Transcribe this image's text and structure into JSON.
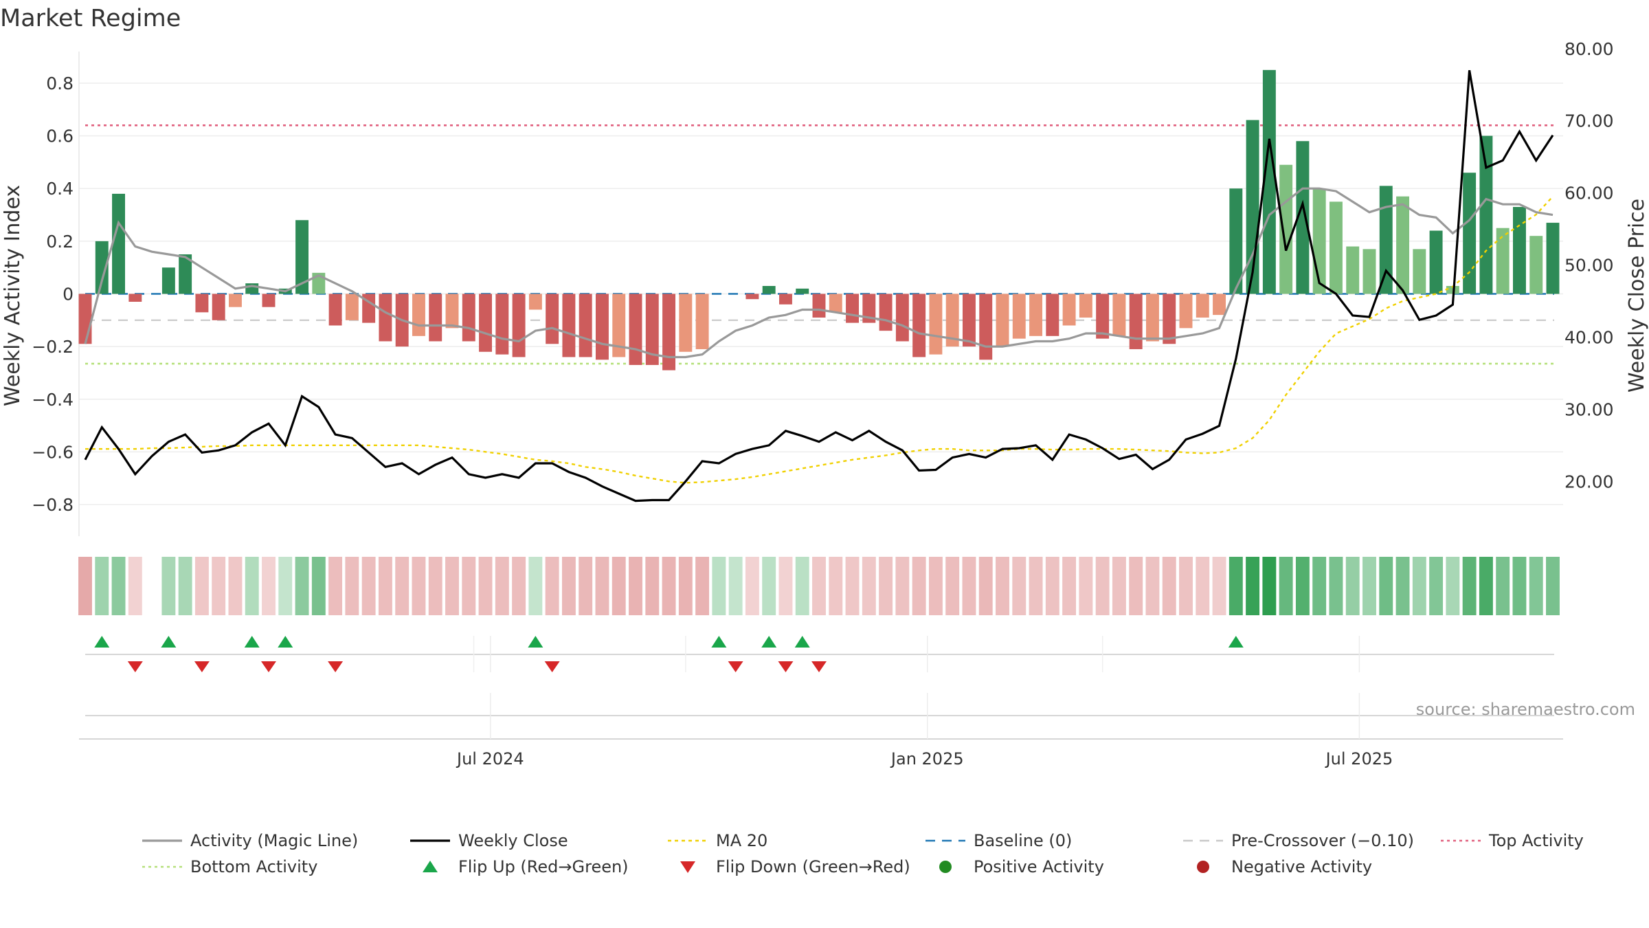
{
  "chart_data": {
    "type": "bar",
    "title": "Market Regime",
    "ylabel": "Weekly Activity Index",
    "y2label": "Weekly Close Price",
    "source": "source: sharemaestro.com",
    "ylim": [
      -0.92,
      0.92
    ],
    "y2lim": [
      12.4,
      79.6
    ],
    "yticks": [
      {
        "v": 0.8,
        "t": "0.8"
      },
      {
        "v": 0.6,
        "t": "0.6"
      },
      {
        "v": 0.4,
        "t": "0.4"
      },
      {
        "v": 0.2,
        "t": "0.2"
      },
      {
        "v": 0,
        "t": "0"
      },
      {
        "v": -0.2,
        "t": "−0.2"
      },
      {
        "v": -0.4,
        "t": "−0.4"
      },
      {
        "v": -0.6,
        "t": "−0.6"
      },
      {
        "v": -0.8,
        "t": "−0.8"
      }
    ],
    "y2ticks": [
      {
        "v": 80,
        "t": "80.00"
      },
      {
        "v": 70,
        "t": "70.00"
      },
      {
        "v": 60,
        "t": "60.00"
      },
      {
        "v": 50,
        "t": "50.00"
      },
      {
        "v": 40,
        "t": "40.00"
      },
      {
        "v": 30,
        "t": "30.00"
      },
      {
        "v": 20,
        "t": "20.00"
      }
    ],
    "xticks": [
      {
        "week": 24.3,
        "t": "Jul 2024"
      },
      {
        "week": 50.5,
        "t": "Jan 2025"
      },
      {
        "week": 76.4,
        "t": "Jul 2025"
      }
    ],
    "weeks": 89,
    "activity": [
      -0.19,
      0.2,
      0.38,
      -0.03,
      0,
      0.1,
      0.15,
      -0.07,
      -0.1,
      -0.05,
      0.04,
      -0.05,
      0.02,
      0.28,
      0.08,
      -0.12,
      -0.1,
      -0.11,
      -0.18,
      -0.2,
      -0.16,
      -0.18,
      -0.13,
      -0.18,
      -0.22,
      -0.23,
      -0.24,
      -0.06,
      -0.19,
      -0.24,
      -0.24,
      -0.25,
      -0.24,
      -0.27,
      -0.27,
      -0.29,
      -0.22,
      -0.21,
      0,
      0,
      -0.02,
      0.03,
      -0.04,
      0.02,
      -0.09,
      -0.07,
      -0.11,
      -0.11,
      -0.14,
      -0.18,
      -0.24,
      -0.23,
      -0.2,
      -0.2,
      -0.25,
      -0.2,
      -0.17,
      -0.16,
      -0.16,
      -0.12,
      -0.09,
      -0.17,
      -0.16,
      -0.21,
      -0.18,
      -0.19,
      -0.13,
      -0.09,
      -0.08,
      0.4,
      0.66,
      0.85,
      0.49,
      0.58,
      0.4,
      0.35,
      0.18,
      0.17,
      0.41,
      0.37,
      0.17,
      0.24,
      0.03,
      0.46,
      0.6,
      0.25,
      0.33,
      0.22,
      0.27
    ],
    "magic_line": [
      -0.19,
      0.05,
      0.27,
      0.18,
      0.16,
      0.15,
      0.14,
      0.1,
      0.06,
      0.02,
      0.03,
      0.02,
      0.01,
      0.04,
      0.07,
      0.04,
      0.01,
      -0.03,
      -0.07,
      -0.1,
      -0.12,
      -0.12,
      -0.12,
      -0.13,
      -0.15,
      -0.17,
      -0.18,
      -0.14,
      -0.13,
      -0.15,
      -0.17,
      -0.19,
      -0.2,
      -0.21,
      -0.23,
      -0.24,
      -0.24,
      -0.23,
      -0.18,
      -0.14,
      -0.12,
      -0.09,
      -0.08,
      -0.06,
      -0.06,
      -0.07,
      -0.08,
      -0.09,
      -0.1,
      -0.12,
      -0.15,
      -0.16,
      -0.17,
      -0.18,
      -0.2,
      -0.2,
      -0.19,
      -0.18,
      -0.18,
      -0.17,
      -0.15,
      -0.15,
      -0.16,
      -0.17,
      -0.17,
      -0.17,
      -0.16,
      -0.15,
      -0.13,
      0.02,
      0.15,
      0.3,
      0.35,
      0.4,
      0.4,
      0.39,
      0.35,
      0.31,
      0.33,
      0.34,
      0.3,
      0.29,
      0.23,
      0.28,
      0.36,
      0.34,
      0.34,
      0.31,
      0.3
    ],
    "weekly_close": [
      23,
      27.5,
      24.5,
      21,
      23.5,
      25.5,
      26.5,
      24,
      24.3,
      25,
      26.8,
      28,
      25,
      31.8,
      30.3,
      26.5,
      26,
      24,
      22,
      22.5,
      21,
      22.3,
      23.3,
      21,
      20.5,
      21,
      20.5,
      22.5,
      22.5,
      21.3,
      20.5,
      19.3,
      18.3,
      17.3,
      17.4,
      17.4,
      20,
      22.8,
      22.5,
      23.8,
      24.5,
      25,
      27,
      26.3,
      25.5,
      26.8,
      25.7,
      27,
      25.5,
      24.3,
      21.5,
      21.6,
      23.3,
      23.8,
      23.3,
      24.5,
      24.6,
      25,
      23,
      26.5,
      25.8,
      24.6,
      23.1,
      23.7,
      21.7,
      23,
      25.8,
      26.6,
      27.7,
      37,
      49,
      67.5,
      52,
      58.5,
      47.5,
      46,
      43,
      42.8,
      49.2,
      46.5,
      42.4,
      43,
      44.5,
      77,
      63.5,
      64.5,
      68.5,
      64.5,
      68
    ],
    "ma20": [
      24.5,
      24.5,
      24.5,
      24.5,
      24.6,
      24.6,
      24.7,
      24.8,
      24.9,
      24.9,
      25,
      25,
      25,
      25,
      25,
      25,
      25,
      25,
      25,
      25,
      25,
      24.8,
      24.6,
      24.4,
      24.1,
      23.8,
      23.4,
      23,
      22.8,
      22.5,
      22,
      21.7,
      21.3,
      20.8,
      20.4,
      20,
      19.8,
      19.9,
      20.1,
      20.3,
      20.6,
      21,
      21.4,
      21.8,
      22.2,
      22.6,
      23,
      23.3,
      23.6,
      24,
      24.3,
      24.5,
      24.5,
      24.3,
      24.3,
      24.3,
      24.5,
      24.5,
      24.4,
      24.4,
      24.5,
      24.5,
      24.5,
      24.4,
      24.3,
      24.2,
      24,
      23.9,
      24,
      24.6,
      26,
      28.5,
      32,
      35,
      38,
      40.5,
      41.5,
      42.5,
      44,
      45,
      45.5,
      46,
      47,
      49,
      52,
      54,
      55.5,
      57,
      59.5
    ],
    "pre_crossover": -0.1,
    "top_activity": 0.64,
    "bottom_activity": -0.265,
    "baseline": 0,
    "strip_levels": [
      -0.6,
      0.4,
      0.5,
      -0.2,
      0,
      0.35,
      0.35,
      -0.3,
      -0.3,
      -0.3,
      0.3,
      -0.2,
      0.2,
      0.5,
      0.6,
      -0.4,
      -0.4,
      -0.4,
      -0.4,
      -0.4,
      -0.4,
      -0.4,
      -0.4,
      -0.4,
      -0.4,
      -0.4,
      -0.4,
      0.2,
      -0.4,
      -0.45,
      -0.45,
      -0.45,
      -0.5,
      -0.5,
      -0.5,
      -0.5,
      -0.5,
      -0.5,
      0.25,
      0.2,
      -0.2,
      0.25,
      -0.2,
      0.25,
      -0.3,
      -0.3,
      -0.3,
      -0.3,
      -0.35,
      -0.35,
      -0.4,
      -0.4,
      -0.4,
      -0.4,
      -0.45,
      -0.4,
      -0.35,
      -0.35,
      -0.35,
      -0.35,
      -0.3,
      -0.35,
      -0.35,
      -0.4,
      -0.35,
      -0.4,
      -0.35,
      -0.3,
      -0.25,
      0.85,
      0.95,
      1,
      0.7,
      0.8,
      0.65,
      0.6,
      0.45,
      0.4,
      0.65,
      0.6,
      0.4,
      0.55,
      0.35,
      0.75,
      0.85,
      0.6,
      0.65,
      0.55,
      0.6
    ],
    "flip_up_weeks": [
      1,
      5,
      10,
      12,
      27,
      38,
      41,
      43,
      69
    ],
    "flip_down_weeks": [
      3,
      7,
      11,
      15,
      28,
      39,
      42,
      44
    ],
    "colors": {
      "strong_green": "#2e8b57",
      "light_green": "#7fbf7f",
      "strong_red": "#cd5c5c",
      "light_red": "#e9967a",
      "magic_line": "#999999",
      "weekly_close": "#000000",
      "ma20": "#f0d000",
      "baseline": "#1f77b4",
      "pre_crossover": "#c8c8c8",
      "top_activity": "#e0607e",
      "bottom_activity": "#b5e07a",
      "flip_up": "#1aa64a",
      "flip_down": "#d62728",
      "positive": "#228b22",
      "negative": "#b22222"
    },
    "legend": [
      {
        "key": "magic",
        "label": "Activity (Magic Line)"
      },
      {
        "key": "close",
        "label": "Weekly Close"
      },
      {
        "key": "ma20",
        "label": "MA 20"
      },
      {
        "key": "baseline",
        "label": "Baseline (0)"
      },
      {
        "key": "pre",
        "label": "Pre-Crossover (−0.10)"
      },
      {
        "key": "top",
        "label": "Top Activity"
      },
      {
        "key": "bottom",
        "label": "Bottom Activity"
      },
      {
        "key": "flipup",
        "label": "Flip Up (Red→Green)"
      },
      {
        "key": "flipdown",
        "label": "Flip Down (Green→Red)"
      },
      {
        "key": "pos",
        "label": "Positive Activity"
      },
      {
        "key": "neg",
        "label": "Negative Activity"
      }
    ]
  }
}
